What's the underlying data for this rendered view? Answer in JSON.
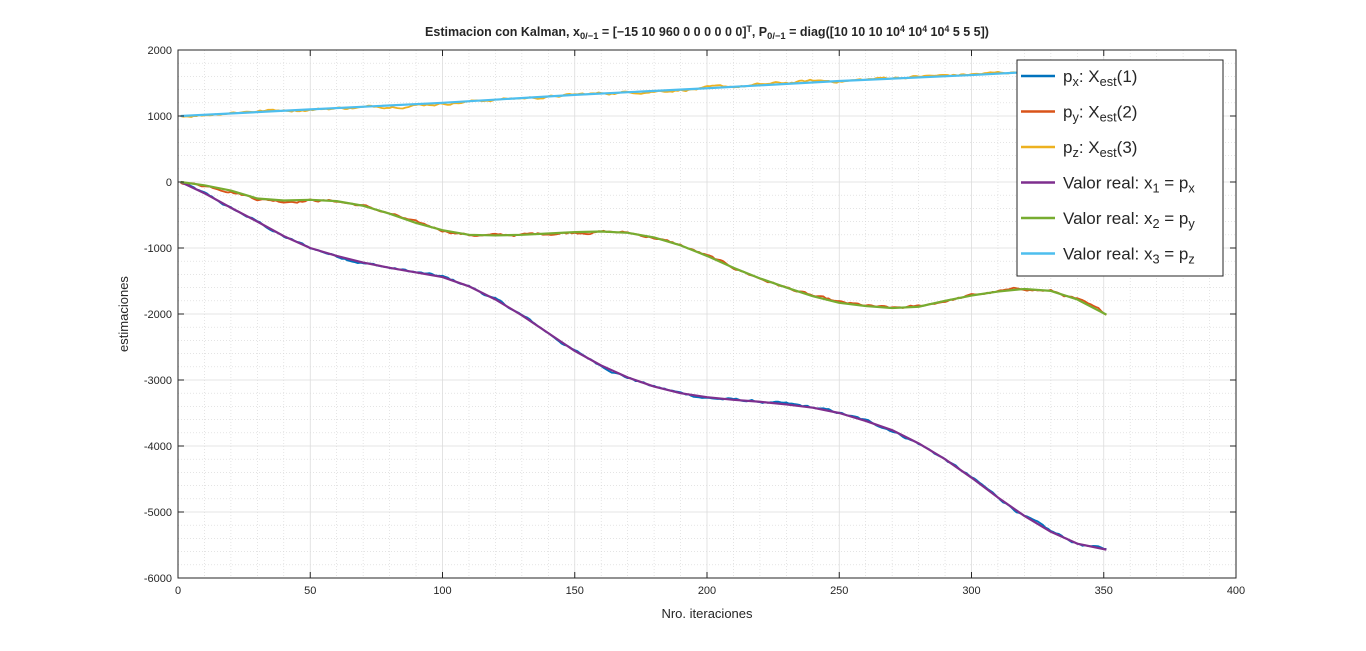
{
  "chart_data": {
    "type": "line",
    "title": {
      "parts": [
        {
          "t": "Estimacion con Kalman, x"
        },
        {
          "t": "0/−1",
          "s": "sub"
        },
        {
          "t": " = [−15 10 960 0 0 0 0 0 0]"
        },
        {
          "t": "T",
          "s": "sup"
        },
        {
          "t": ", P"
        },
        {
          "t": "0/−1",
          "s": "sub"
        },
        {
          "t": " = diag([10 10 10 10"
        },
        {
          "t": "4",
          "s": "sup"
        },
        {
          "t": " 10"
        },
        {
          "t": "4",
          "s": "sup"
        },
        {
          "t": " 10"
        },
        {
          "t": "4",
          "s": "sup"
        },
        {
          "t": " 5 5 5])"
        }
      ]
    },
    "xlabel": "Nro. iteraciones",
    "ylabel": "estimaciones",
    "xlim": [
      0,
      400
    ],
    "ylim": [
      -6000,
      2000
    ],
    "xticks": [
      0,
      50,
      100,
      150,
      200,
      250,
      300,
      350,
      400
    ],
    "yticks": [
      -6000,
      -5000,
      -4000,
      -3000,
      -2000,
      -1000,
      0,
      1000,
      2000
    ],
    "grid": true,
    "minor_grid": true,
    "legend_position": "top-right",
    "series": [
      {
        "color": "#0072BD",
        "legend_parts": [
          {
            "t": "p"
          },
          {
            "t": "x",
            "s": "sub"
          },
          {
            "t": ": X"
          },
          {
            "t": "est",
            "s": "sub"
          },
          {
            "t": "(1)"
          }
        ],
        "noise": true,
        "x": [
          1,
          10,
          20,
          30,
          40,
          50,
          60,
          70,
          80,
          90,
          100,
          110,
          120,
          130,
          140,
          150,
          160,
          170,
          180,
          190,
          200,
          210,
          220,
          230,
          240,
          250,
          260,
          270,
          280,
          290,
          300,
          310,
          320,
          330,
          340,
          351
        ],
        "y": [
          0,
          -180,
          -400,
          -600,
          -830,
          -1000,
          -1120,
          -1220,
          -1300,
          -1370,
          -1440,
          -1580,
          -1780,
          -2020,
          -2290,
          -2560,
          -2780,
          -2960,
          -3100,
          -3200,
          -3270,
          -3300,
          -3330,
          -3370,
          -3420,
          -3500,
          -3620,
          -3760,
          -3960,
          -4200,
          -4480,
          -4780,
          -5060,
          -5300,
          -5480,
          -5570
        ]
      },
      {
        "color": "#D95319",
        "legend_parts": [
          {
            "t": "p"
          },
          {
            "t": "y",
            "s": "sub"
          },
          {
            "t": ": X"
          },
          {
            "t": "est",
            "s": "sub"
          },
          {
            "t": "(2)"
          }
        ],
        "noise": true,
        "x": [
          1,
          10,
          20,
          30,
          40,
          50,
          60,
          70,
          80,
          90,
          100,
          110,
          120,
          130,
          140,
          150,
          160,
          170,
          180,
          190,
          200,
          210,
          220,
          230,
          240,
          250,
          260,
          270,
          280,
          290,
          300,
          310,
          320,
          330,
          340,
          351
        ],
        "y": [
          0,
          -50,
          -130,
          -250,
          -290,
          -270,
          -290,
          -360,
          -480,
          -620,
          -730,
          -800,
          -810,
          -800,
          -780,
          -760,
          -750,
          -770,
          -840,
          -960,
          -1120,
          -1300,
          -1460,
          -1600,
          -1730,
          -1830,
          -1880,
          -1920,
          -1890,
          -1800,
          -1720,
          -1660,
          -1620,
          -1650,
          -1780,
          -2010
        ]
      },
      {
        "color": "#EDB120",
        "legend_parts": [
          {
            "t": "p"
          },
          {
            "t": "z",
            "s": "sub"
          },
          {
            "t": ": X"
          },
          {
            "t": "est",
            "s": "sub"
          },
          {
            "t": "(3)"
          }
        ],
        "noise": true,
        "x": [
          1,
          10,
          20,
          30,
          40,
          50,
          60,
          70,
          80,
          90,
          100,
          110,
          120,
          130,
          140,
          150,
          160,
          170,
          180,
          190,
          200,
          210,
          220,
          230,
          240,
          250,
          260,
          270,
          280,
          290,
          300,
          310,
          320,
          330,
          340,
          351
        ],
        "y": [
          1000,
          1020,
          1060,
          1080,
          1090,
          1100,
          1120,
          1130,
          1150,
          1170,
          1190,
          1220,
          1250,
          1270,
          1290,
          1320,
          1340,
          1360,
          1380,
          1400,
          1420,
          1440,
          1470,
          1500,
          1530,
          1530,
          1550,
          1580,
          1600,
          1610,
          1630,
          1650,
          1670,
          1690,
          1710,
          1730
        ]
      },
      {
        "color": "#7E2F8E",
        "legend_parts": [
          {
            "t": "Valor real: x"
          },
          {
            "t": "1",
            "s": "sub"
          },
          {
            "t": " = p"
          },
          {
            "t": "x",
            "s": "sub"
          }
        ],
        "noise": false,
        "x": [
          1,
          10,
          20,
          30,
          40,
          50,
          60,
          70,
          80,
          90,
          100,
          110,
          120,
          130,
          140,
          150,
          160,
          170,
          180,
          190,
          200,
          210,
          220,
          230,
          240,
          250,
          260,
          270,
          280,
          290,
          300,
          310,
          320,
          330,
          340,
          351
        ],
        "y": [
          0,
          -170,
          -390,
          -600,
          -820,
          -1000,
          -1120,
          -1220,
          -1300,
          -1370,
          -1440,
          -1580,
          -1780,
          -2020,
          -2290,
          -2560,
          -2780,
          -2960,
          -3100,
          -3200,
          -3260,
          -3300,
          -3330,
          -3370,
          -3420,
          -3500,
          -3620,
          -3760,
          -3960,
          -4200,
          -4480,
          -4780,
          -5060,
          -5300,
          -5480,
          -5570
        ]
      },
      {
        "color": "#77AC30",
        "legend_parts": [
          {
            "t": "Valor real: x"
          },
          {
            "t": "2",
            "s": "sub"
          },
          {
            "t": " = p"
          },
          {
            "t": "y",
            "s": "sub"
          }
        ],
        "noise": false,
        "x": [
          1,
          10,
          20,
          30,
          40,
          50,
          60,
          70,
          80,
          90,
          100,
          110,
          120,
          130,
          140,
          150,
          160,
          170,
          180,
          190,
          200,
          210,
          220,
          230,
          240,
          250,
          260,
          270,
          280,
          290,
          300,
          310,
          320,
          330,
          340,
          351
        ],
        "y": [
          0,
          -50,
          -130,
          -250,
          -280,
          -270,
          -290,
          -360,
          -480,
          -620,
          -730,
          -800,
          -810,
          -800,
          -780,
          -760,
          -750,
          -770,
          -840,
          -960,
          -1120,
          -1300,
          -1460,
          -1600,
          -1730,
          -1830,
          -1880,
          -1910,
          -1890,
          -1800,
          -1720,
          -1660,
          -1620,
          -1650,
          -1780,
          -2010
        ]
      },
      {
        "color": "#4DBEEE",
        "legend_parts": [
          {
            "t": "Valor real: x"
          },
          {
            "t": "3",
            "s": "sub"
          },
          {
            "t": " = p"
          },
          {
            "t": "z",
            "s": "sub"
          }
        ],
        "noise": false,
        "x": [
          1,
          50,
          100,
          150,
          200,
          250,
          300,
          351
        ],
        "y": [
          1000,
          1100,
          1200,
          1320,
          1420,
          1530,
          1620,
          1730
        ]
      }
    ]
  }
}
